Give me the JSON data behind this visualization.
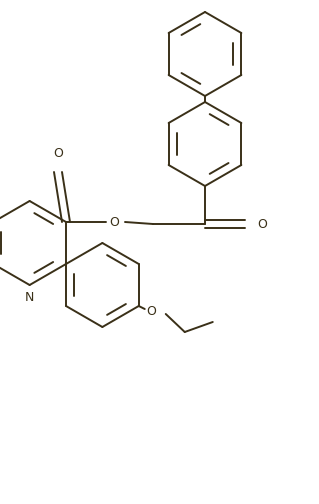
{
  "line_color": "#3a3018",
  "line_width": 1.4,
  "bg_color": "#ffffff",
  "figsize": [
    3.19,
    5.04
  ],
  "dpi": 100,
  "xlim": [
    0,
    319
  ],
  "ylim": [
    0,
    504
  ]
}
